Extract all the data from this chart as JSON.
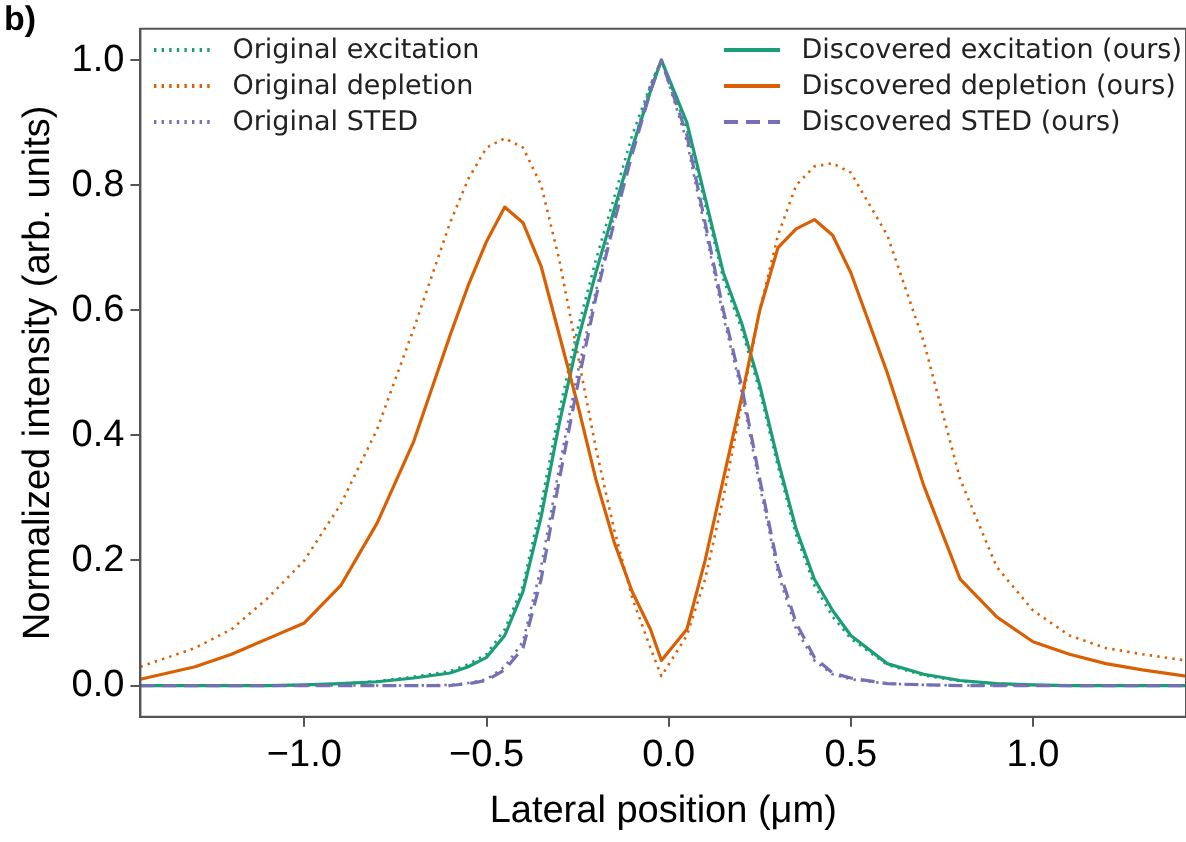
{
  "chart_data": {
    "type": "line",
    "annotations": [
      "b)"
    ],
    "xlabel": "Lateral position (μm)",
    "ylabel": "Normalized intensity (arb. units)",
    "x": [
      -1.45,
      -1.3,
      -1.2,
      -1.1,
      -1.0,
      -0.9,
      -0.8,
      -0.7,
      -0.6,
      -0.55,
      -0.5,
      -0.45,
      -0.4,
      -0.35,
      -0.3,
      -0.25,
      -0.2,
      -0.15,
      -0.1,
      -0.05,
      -0.02,
      0.05,
      0.1,
      0.15,
      0.2,
      0.25,
      0.3,
      0.35,
      0.4,
      0.45,
      0.5,
      0.6,
      0.7,
      0.8,
      0.9,
      1.0,
      1.1,
      1.2,
      1.3,
      1.42
    ],
    "series": [
      {
        "name": "Original excitation",
        "color": "#1b9e77",
        "line_style": "dotted",
        "values": [
          0,
          0,
          0,
          0,
          0.001,
          0.003,
          0.007,
          0.014,
          0.023,
          0.034,
          0.05,
          0.09,
          0.16,
          0.29,
          0.44,
          0.57,
          0.68,
          0.78,
          0.88,
          0.96,
          1.0,
          0.89,
          0.77,
          0.65,
          0.57,
          0.47,
          0.35,
          0.24,
          0.16,
          0.11,
          0.075,
          0.033,
          0.016,
          0.007,
          0.003,
          0.001,
          0,
          0,
          0,
          0
        ]
      },
      {
        "name": "Original depletion",
        "color": "#d95f02",
        "line_style": "dotted",
        "values": [
          0.03,
          0.06,
          0.09,
          0.14,
          0.2,
          0.29,
          0.41,
          0.57,
          0.74,
          0.81,
          0.86,
          0.875,
          0.86,
          0.8,
          0.68,
          0.53,
          0.38,
          0.25,
          0.14,
          0.06,
          0.015,
          0.08,
          0.17,
          0.3,
          0.45,
          0.6,
          0.72,
          0.8,
          0.83,
          0.835,
          0.82,
          0.72,
          0.55,
          0.33,
          0.19,
          0.12,
          0.08,
          0.06,
          0.05,
          0.04
        ]
      },
      {
        "name": "Original STED",
        "color": "#7570b3",
        "line_style": "dotted",
        "values": [
          0,
          0,
          0,
          0,
          0,
          0,
          0,
          0,
          0.001,
          0.004,
          0.01,
          0.03,
          0.07,
          0.19,
          0.35,
          0.5,
          0.63,
          0.75,
          0.86,
          0.96,
          1.0,
          0.87,
          0.73,
          0.59,
          0.47,
          0.32,
          0.18,
          0.09,
          0.04,
          0.018,
          0.01,
          0.003,
          0.001,
          0,
          0,
          0,
          0,
          0,
          0,
          0
        ]
      },
      {
        "name": "Discovered excitation (ours)",
        "color": "#1b9e77",
        "line_style": "solid",
        "values": [
          0,
          0,
          0,
          0,
          0.001,
          0.003,
          0.006,
          0.012,
          0.02,
          0.03,
          0.045,
          0.08,
          0.15,
          0.27,
          0.42,
          0.55,
          0.66,
          0.76,
          0.86,
          0.95,
          1.0,
          0.9,
          0.78,
          0.66,
          0.58,
          0.48,
          0.36,
          0.25,
          0.17,
          0.12,
          0.08,
          0.035,
          0.018,
          0.008,
          0.003,
          0.001,
          0,
          0,
          0,
          0
        ]
      },
      {
        "name": "Discovered depletion (ours)",
        "color": "#d95f02",
        "line_style": "solid",
        "values": [
          0.01,
          0.03,
          0.05,
          0.075,
          0.1,
          0.16,
          0.26,
          0.39,
          0.56,
          0.64,
          0.71,
          0.765,
          0.74,
          0.67,
          0.56,
          0.45,
          0.33,
          0.23,
          0.15,
          0.09,
          0.04,
          0.09,
          0.2,
          0.33,
          0.46,
          0.6,
          0.7,
          0.73,
          0.745,
          0.72,
          0.66,
          0.5,
          0.32,
          0.17,
          0.11,
          0.07,
          0.05,
          0.035,
          0.025,
          0.015
        ]
      },
      {
        "name": "Discovered STED (ours)",
        "color": "#7570b3",
        "line_style": "dashed",
        "values": [
          0,
          0,
          0,
          0,
          0,
          0,
          0,
          0,
          0,
          0.003,
          0.008,
          0.025,
          0.06,
          0.17,
          0.33,
          0.48,
          0.62,
          0.74,
          0.85,
          0.95,
          1.0,
          0.88,
          0.74,
          0.6,
          0.48,
          0.33,
          0.19,
          0.1,
          0.045,
          0.02,
          0.012,
          0.003,
          0.001,
          0,
          0,
          0,
          0,
          0,
          0,
          0
        ]
      }
    ],
    "xlim": [
      -1.45,
      1.42
    ],
    "xticks": [
      {
        "value": -1.0,
        "label": "−1.0"
      },
      {
        "value": -0.5,
        "label": "−0.5"
      },
      {
        "value": 0,
        "label": "0.0"
      },
      0.5,
      {
        "value": 1,
        "label": "1.0"
      }
    ],
    "ylim": [
      -0.05,
      1.05
    ],
    "yticks": [
      {
        "value": 0,
        "label": "0.0"
      },
      0.2,
      0.4,
      0.6,
      0.8,
      {
        "value": 1,
        "label": "1.0"
      }
    ],
    "grid": false,
    "legend": "top",
    "marker": "none"
  }
}
